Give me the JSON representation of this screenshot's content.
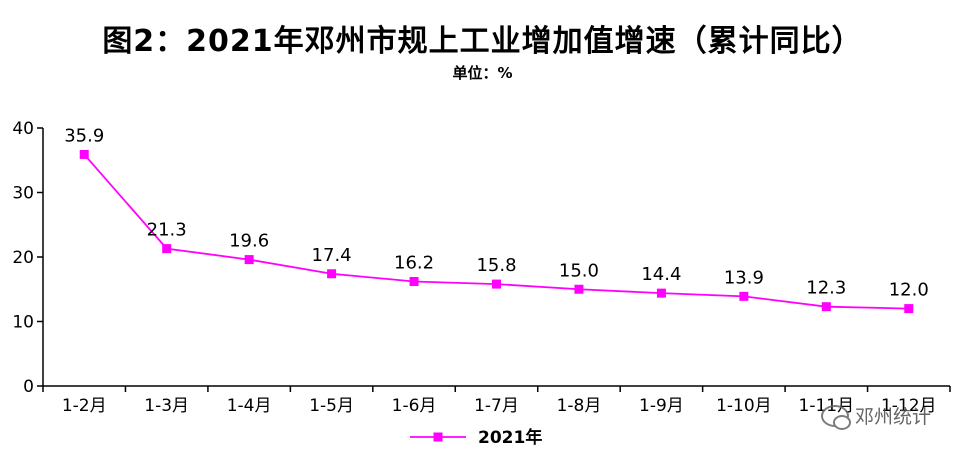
{
  "title": "图2：2021年邓州市规上工业增加值增速（累计同比）",
  "unit": "单位：%",
  "watermark": "邓州统计",
  "colors": {
    "series": "#ff00ff",
    "axis": "#000000"
  },
  "chart_data": {
    "type": "line",
    "categories": [
      "1-2月",
      "1-3月",
      "1-4月",
      "1-5月",
      "1-6月",
      "1-7月",
      "1-8月",
      "1-9月",
      "1-10月",
      "1-11月",
      "1-12月"
    ],
    "series": [
      {
        "name": "2021年",
        "values": [
          35.9,
          21.3,
          19.6,
          17.4,
          16.2,
          15.8,
          15.0,
          14.4,
          13.9,
          12.3,
          12.0
        ],
        "labels": [
          "35.9",
          "21.3",
          "19.6",
          "17.4",
          "16.2",
          "15.8",
          "15.0",
          "14.4",
          "13.9",
          "12.3",
          "12.0"
        ]
      }
    ],
    "ylim": [
      0,
      40
    ],
    "yticks": [
      0,
      10,
      20,
      30,
      40
    ],
    "grid": false,
    "legend": "bottom-center",
    "marker": "square"
  }
}
